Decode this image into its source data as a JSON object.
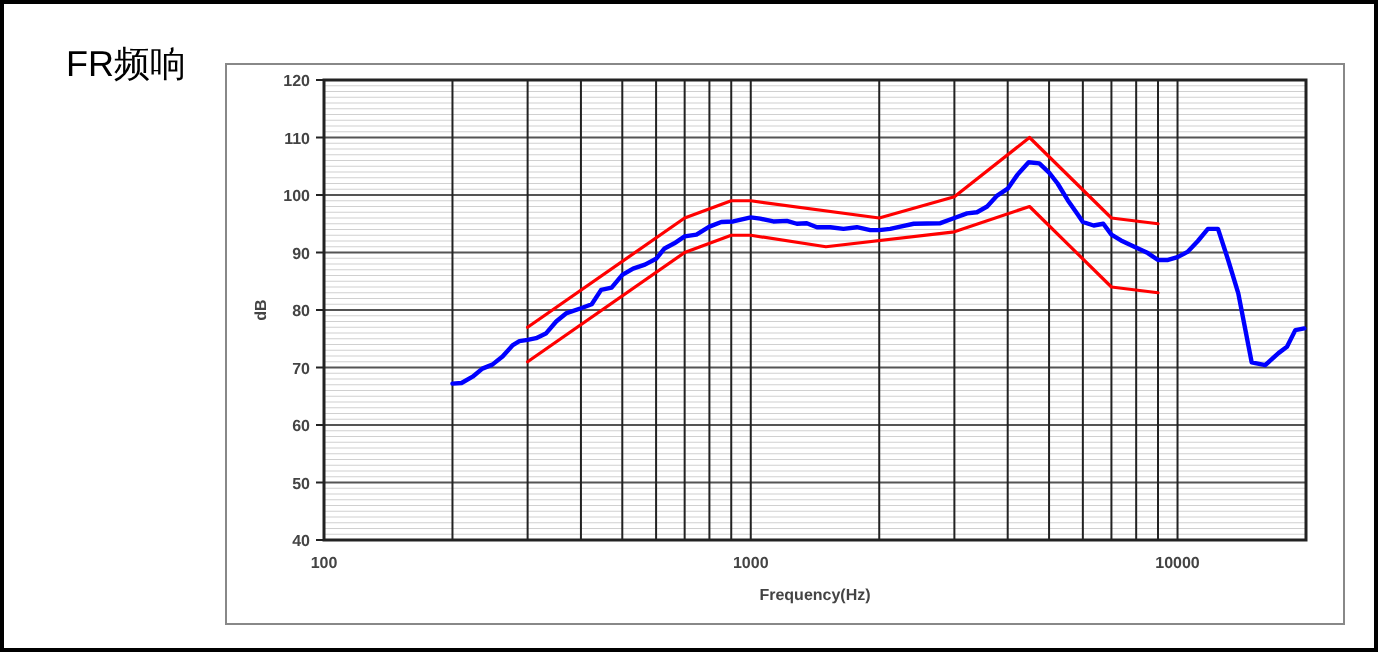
{
  "chart_data": {
    "type": "line",
    "title": "FR频响",
    "xlabel": "Frequency(Hz)",
    "ylabel": "dB",
    "log": "x",
    "grid": true,
    "marker": "none",
    "line_style": "solid",
    "xlim": [
      100,
      20000
    ],
    "xticks": [
      100,
      {
        "value": 200,
        "label": null
      },
      {
        "value": 300,
        "label": null
      },
      {
        "value": 400,
        "label": null
      },
      {
        "value": 500,
        "label": null
      },
      {
        "value": 600,
        "label": null
      },
      {
        "value": 700,
        "label": null
      },
      {
        "value": 800,
        "label": null
      },
      {
        "value": 900,
        "label": null
      },
      1000,
      {
        "value": 2000,
        "label": null
      },
      {
        "value": 3000,
        "label": null
      },
      {
        "value": 4000,
        "label": null
      },
      {
        "value": 5000,
        "label": null
      },
      {
        "value": 6000,
        "label": null
      },
      {
        "value": 7000,
        "label": null
      },
      {
        "value": 8000,
        "label": null
      },
      {
        "value": 9000,
        "label": null
      },
      10000
    ],
    "ylim": [
      40,
      120
    ],
    "yticks": [
      40,
      50,
      60,
      70,
      80,
      90,
      100,
      110,
      120
    ],
    "series": [
      {
        "color": "#0000ff",
        "x": [
          200,
          210,
          223,
          235,
          248,
          262,
          277,
          287,
          300,
          314,
          331,
          350,
          369,
          400,
          424,
          446,
          472,
          500,
          530,
          565,
          600,
          628,
          662,
          700,
          746,
          800,
          853,
          910,
          1000,
          1052,
          1130,
          1215,
          1282,
          1353,
          1429,
          1536,
          1649,
          1773,
          1906,
          2000,
          2122,
          2242,
          2409,
          2781,
          3000,
          3212,
          3389,
          3580,
          3779,
          4000,
          4214,
          4479,
          4744,
          5000,
          5235,
          5530,
          5837,
          6000,
          6360,
          6700,
          7000,
          7370,
          7920,
          8520,
          9000,
          9500,
          10000,
          10550,
          11160,
          11780,
          12440,
          13140,
          13880,
          14920,
          16050,
          17240,
          18050,
          18880,
          19820
        ],
        "values": [
          67.2,
          67.3,
          68.4,
          69.8,
          70.5,
          71.9,
          73.9,
          74.6,
          74.8,
          75.1,
          75.9,
          78.0,
          79.4,
          80.3,
          81.0,
          83.5,
          83.9,
          86.1,
          87.2,
          87.9,
          88.9,
          90.7,
          91.6,
          92.8,
          93.1,
          94.5,
          95.3,
          95.4,
          96.1,
          95.9,
          95.4,
          95.5,
          95.0,
          95.1,
          94.4,
          94.4,
          94.1,
          94.4,
          93.9,
          93.9,
          94.1,
          94.5,
          95.0,
          95.1,
          96.0,
          96.8,
          97.0,
          98.0,
          99.9,
          101.1,
          103.5,
          105.7,
          105.5,
          103.9,
          102.0,
          99.1,
          96.6,
          95.3,
          94.7,
          95.0,
          93.1,
          92.1,
          91.0,
          89.9,
          88.7,
          88.7,
          89.2,
          90.1,
          92.0,
          94.1,
          94.1,
          88.7,
          82.9,
          70.9,
          70.4,
          72.5,
          73.6,
          76.5,
          76.8
        ]
      },
      {
        "color": "#ff0000",
        "x": [
          300,
          700,
          900,
          1000,
          2000,
          3000,
          4500,
          7000,
          9000
        ],
        "values": [
          77,
          96,
          99,
          99,
          96,
          99.7,
          110,
          96,
          95
        ]
      },
      {
        "color": "#ff0000",
        "x": [
          300,
          700,
          900,
          1000,
          1500,
          3000,
          4500,
          7000,
          9000
        ],
        "values": [
          71,
          90,
          93,
          93,
          91,
          93.6,
          98,
          84,
          83
        ]
      }
    ]
  }
}
